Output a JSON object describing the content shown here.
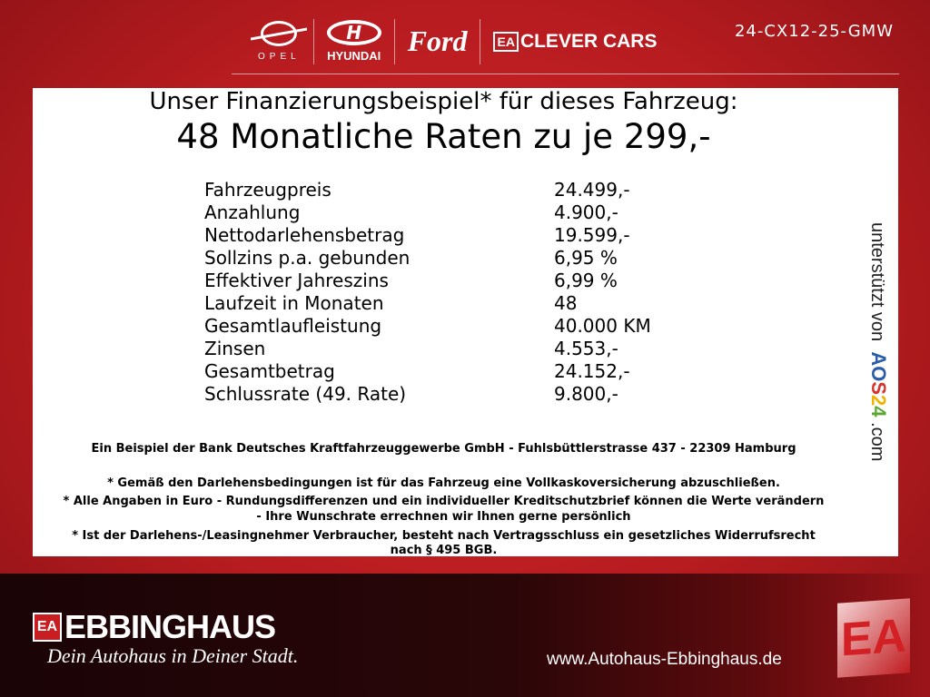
{
  "header": {
    "brands": [
      {
        "name": "Opel",
        "label": "OPEL"
      },
      {
        "name": "Hyundai",
        "label": "HYUNDAI"
      },
      {
        "name": "Ford",
        "label": "Ford"
      },
      {
        "name": "Clever Cars",
        "badge": "EA",
        "label": "CLEVER CARS"
      }
    ],
    "vehicle_id": "24-CX12-25-GMW"
  },
  "finance": {
    "title": "Unser Finanzierungsbeispiel* für dieses Fahrzeug:",
    "headline": "48 Monatliche Raten zu je 299,-",
    "rows": [
      {
        "label": "Fahrzeugpreis",
        "value": "24.499,-"
      },
      {
        "label": "Anzahlung",
        "value": "4.900,-"
      },
      {
        "label": "Nettodarlehensbetrag",
        "value": "19.599,-"
      },
      {
        "label": "Sollzins p.a. gebunden",
        "value": "6,95 %"
      },
      {
        "label": "Effektiver Jahreszins",
        "value": "6,99 %"
      },
      {
        "label": "Laufzeit in Monaten",
        "value": "48"
      },
      {
        "label": "Gesamtlaufleistung",
        "value": "40.000 KM"
      },
      {
        "label": "Zinsen",
        "value": "4.553,-"
      },
      {
        "label": "Gesamtbetrag",
        "value": "24.152,-"
      },
      {
        "label": "Schlussrate (49. Rate)",
        "value": "9.800,-"
      }
    ],
    "bank_note": "Ein Beispiel der Bank Deutsches Kraftfahrzeuggewerbe GmbH - Fuhlsbüttlerstrasse 437 - 22309 Hamburg",
    "notes": [
      "* Gemäß den Darlehensbedingungen ist für das Fahrzeug eine Vollkaskoversicherung abzuschließen.",
      "* Alle Angaben in Euro - Rundungsdifferenzen und ein individueller Kreditschutzbrief können die Werte verändern",
      "- Ihre Wunschrate errechnen wir Ihnen gerne persönlich",
      "* Ist der Darlehens-/Leasingnehmer Verbraucher, besteht nach Vertragsschluss ein gesetzliches Widerrufsrecht",
      "nach § 495 BGB."
    ],
    "supported_by": "unterstützt von",
    "aos_logo": {
      "text": "AOS24",
      "colors": [
        "#2a5caa",
        "#2a5caa",
        "#d8342c",
        "#f0b400",
        "#5aa832"
      ]
    },
    "aos_suffix": ".com"
  },
  "footer": {
    "logo_badge": "EA",
    "logo_name": "EBBINGHAUS",
    "slogan": "Dein Autohaus in Deiner Stadt.",
    "url": "www.Autohaus-Ebbinghaus.de",
    "emblem": "EA"
  },
  "colors": {
    "brand_red": "#c81e22",
    "footer_dark": "#1a0406"
  }
}
